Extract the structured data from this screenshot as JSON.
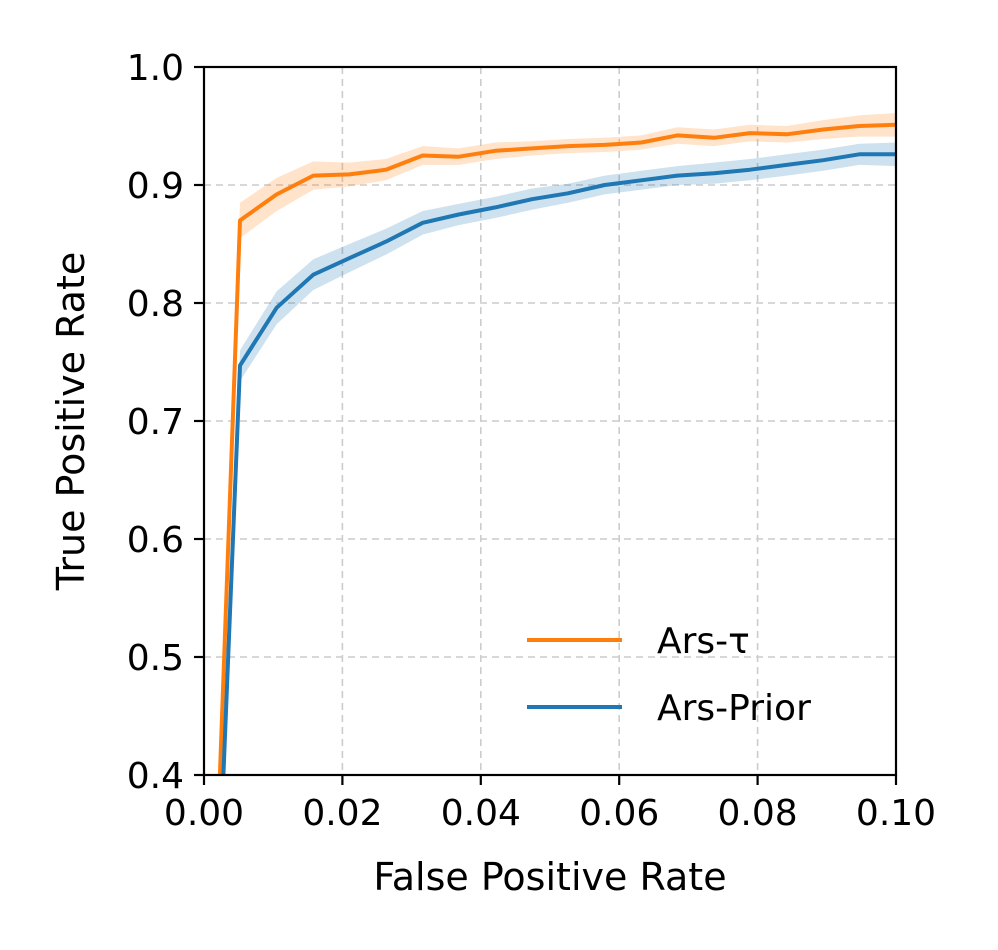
{
  "chart_data": {
    "type": "line",
    "xlabel": "False Positive Rate",
    "ylabel": "True Positive Rate",
    "xlim": [
      0.0,
      0.1
    ],
    "ylim": [
      0.4,
      1.0
    ],
    "xticks": [
      "0.00",
      "0.02",
      "0.04",
      "0.06",
      "0.08",
      "0.10"
    ],
    "xtick_values": [
      0.0,
      0.02,
      0.04,
      0.06,
      0.08,
      0.1
    ],
    "yticks": [
      "0.4",
      "0.5",
      "0.6",
      "0.7",
      "0.8",
      "0.9",
      "1.0"
    ],
    "ytick_values": [
      0.4,
      0.5,
      0.6,
      0.7,
      0.8,
      0.9,
      1.0
    ],
    "grid": true,
    "legend_position": "bottom-right",
    "series": [
      {
        "name": "Ars-τ",
        "color": "#ff7f0e",
        "x": [
          0.0023,
          0.0052,
          0.0105,
          0.0158,
          0.021,
          0.0263,
          0.0316,
          0.0368,
          0.0421,
          0.0474,
          0.0526,
          0.0579,
          0.0632,
          0.0684,
          0.0737,
          0.0789,
          0.0842,
          0.0895,
          0.0947,
          0.1
        ],
        "y": [
          0.4,
          0.87,
          0.892,
          0.908,
          0.909,
          0.913,
          0.925,
          0.924,
          0.929,
          0.931,
          0.933,
          0.934,
          0.936,
          0.942,
          0.94,
          0.944,
          0.943,
          0.947,
          0.95,
          0.951
        ],
        "band": [
          0.0,
          0.015,
          0.014,
          0.012,
          0.01,
          0.009,
          0.008,
          0.007,
          0.007,
          0.006,
          0.006,
          0.006,
          0.006,
          0.007,
          0.007,
          0.007,
          0.007,
          0.008,
          0.009,
          0.01
        ]
      },
      {
        "name": "Ars-Prior",
        "color": "#1f77b4",
        "x": [
          0.0028,
          0.0052,
          0.0105,
          0.0158,
          0.021,
          0.0263,
          0.0316,
          0.0368,
          0.0421,
          0.0474,
          0.0526,
          0.0579,
          0.0632,
          0.0684,
          0.0737,
          0.0789,
          0.0842,
          0.0895,
          0.0947,
          0.1
        ],
        "y": [
          0.4,
          0.747,
          0.796,
          0.824,
          0.838,
          0.852,
          0.868,
          0.875,
          0.881,
          0.888,
          0.893,
          0.9,
          0.904,
          0.908,
          0.91,
          0.913,
          0.917,
          0.921,
          0.926,
          0.926
        ],
        "band": [
          0.0,
          0.013,
          0.014,
          0.013,
          0.012,
          0.011,
          0.01,
          0.009,
          0.009,
          0.009,
          0.008,
          0.008,
          0.008,
          0.008,
          0.009,
          0.009,
          0.009,
          0.009,
          0.009,
          0.01
        ]
      }
    ]
  }
}
